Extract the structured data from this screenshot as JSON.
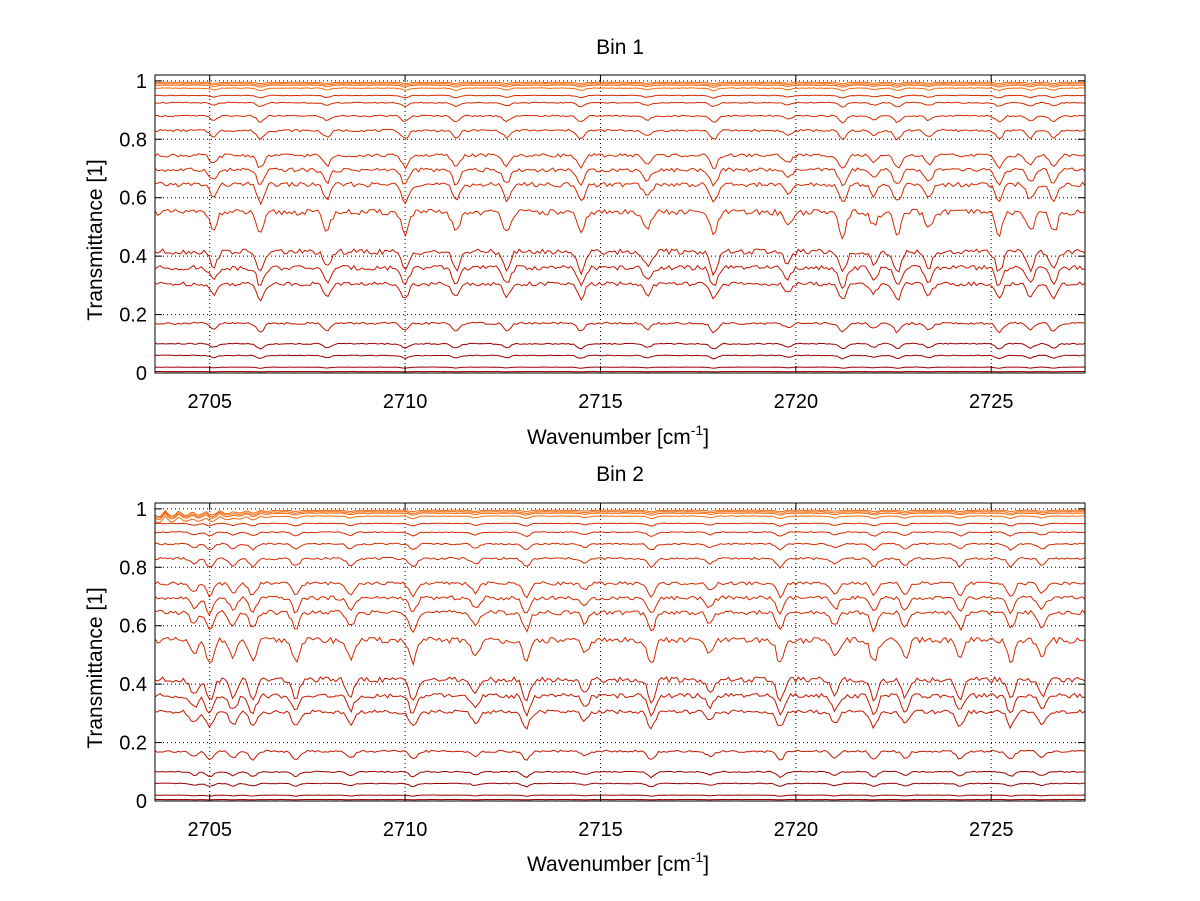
{
  "chart_data": [
    {
      "type": "line",
      "title": "Bin 1",
      "xlabel": "Wavenumber [cm",
      "xlabel_sup": "-1",
      "xlabel_end": "]",
      "ylabel": "Transmittance [1]",
      "xlim": [
        2703.6,
        2727.4
      ],
      "ylim": [
        0,
        1.02
      ],
      "xticks": [
        "2705",
        "2710",
        "2715",
        "2720",
        "2725"
      ],
      "yticks": [
        "0",
        "0.2",
        "0.4",
        "0.6",
        "0.8",
        "1"
      ],
      "grid": true,
      "series_levels": [
        0.995,
        0.99,
        0.985,
        0.975,
        0.95,
        0.925,
        0.88,
        0.83,
        0.745,
        0.695,
        0.645,
        0.55,
        0.415,
        0.36,
        0.305,
        0.17,
        0.1,
        0.06,
        0.02,
        0.005
      ],
      "absorption_lines": [
        2705.1,
        2706.3,
        2708.0,
        2710.0,
        2711.3,
        2712.6,
        2714.5,
        2716.2,
        2717.9,
        2719.8,
        2721.2,
        2722.0,
        2722.6,
        2723.4,
        2725.2,
        2726.0,
        2726.6
      ]
    },
    {
      "type": "line",
      "title": "Bin 2",
      "xlabel": "Wavenumber [cm",
      "xlabel_sup": "-1",
      "xlabel_end": "]",
      "ylabel": "Transmittance [1]",
      "xlim": [
        2703.6,
        2727.4
      ],
      "ylim": [
        0,
        1.02
      ],
      "xticks": [
        "2705",
        "2710",
        "2715",
        "2720",
        "2725"
      ],
      "yticks": [
        "0",
        "0.2",
        "0.4",
        "0.6",
        "0.8",
        "1"
      ],
      "grid": true,
      "series_levels": [
        0.995,
        0.99,
        0.985,
        0.975,
        0.95,
        0.92,
        0.88,
        0.83,
        0.745,
        0.695,
        0.645,
        0.55,
        0.415,
        0.36,
        0.305,
        0.17,
        0.1,
        0.06,
        0.02,
        0.005
      ],
      "absorption_lines": [
        2704.6,
        2705.0,
        2705.6,
        2706.1,
        2707.2,
        2708.6,
        2710.2,
        2711.8,
        2713.1,
        2714.6,
        2716.3,
        2717.8,
        2719.6,
        2721.0,
        2722.0,
        2722.8,
        2724.2,
        2725.5,
        2726.3
      ]
    }
  ]
}
